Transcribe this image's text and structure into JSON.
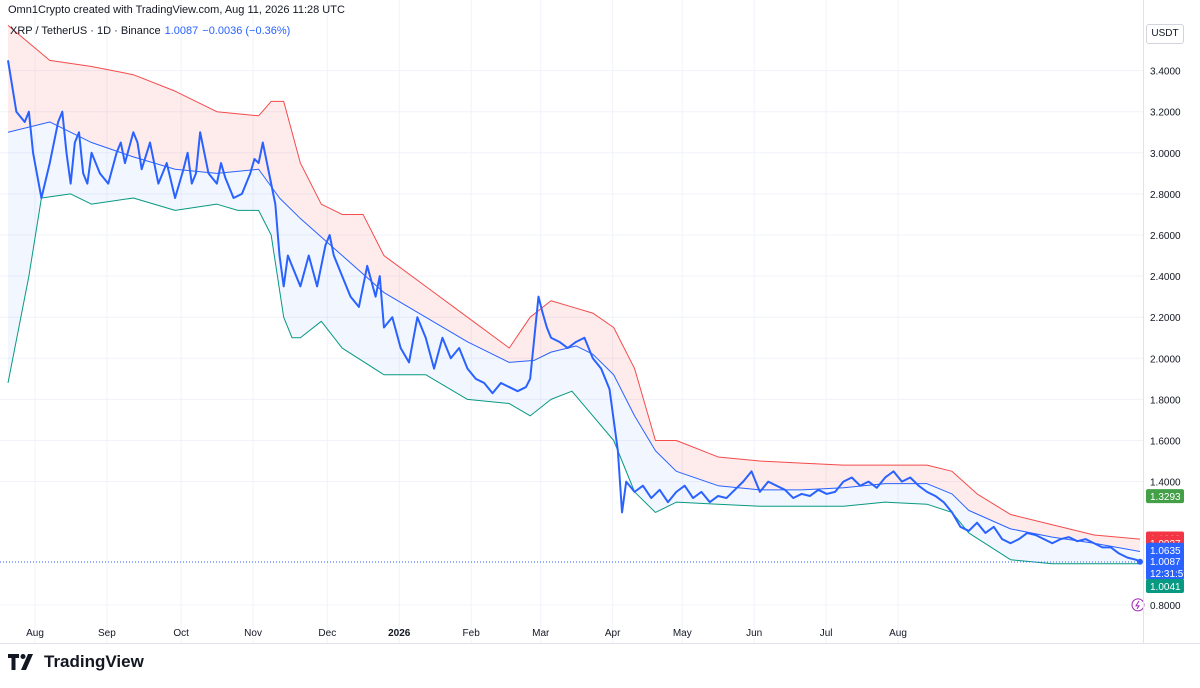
{
  "caption": "Omn1Crypto created with TradingView.com, Aug 11, 2026 11:28 UTC",
  "legend": {
    "symbol": "XRP / TetherUS · 1D · Binance",
    "value": "1.0087",
    "change": "−0.0036 (−0.36%)"
  },
  "currency": "USDT",
  "brand": {
    "name": "TradingView",
    "logo_icon": "tradingview-logo-icon"
  },
  "chart_data": {
    "type": "line",
    "x_labels": [
      "Aug",
      "Sep",
      "Oct",
      "Nov",
      "Dec",
      "2026",
      "Feb",
      "Mar",
      "Apr",
      "May",
      "Jun",
      "Jul",
      "Aug"
    ],
    "y_ticks": [
      "3.4000",
      "3.2000",
      "3.0000",
      "2.8000",
      "2.6000",
      "2.4000",
      "2.2000",
      "2.0000",
      "1.8000",
      "1.6000",
      "1.4000",
      "0.8000"
    ],
    "ylim": [
      0.75,
      3.66
    ],
    "grid": true,
    "series": [
      {
        "name": "XRP / TetherUS",
        "color": "#2962ff",
        "points": [
          [
            0,
            3.45
          ],
          [
            2,
            3.2
          ],
          [
            4,
            3.15
          ],
          [
            5,
            3.2
          ],
          [
            6,
            3.0
          ],
          [
            8,
            2.78
          ],
          [
            10,
            2.95
          ],
          [
            12,
            3.15
          ],
          [
            13,
            3.2
          ],
          [
            14,
            3.0
          ],
          [
            15,
            2.85
          ],
          [
            16,
            3.05
          ],
          [
            17,
            3.1
          ],
          [
            18,
            2.9
          ],
          [
            19,
            2.85
          ],
          [
            20,
            3.0
          ],
          [
            22,
            2.9
          ],
          [
            24,
            2.85
          ],
          [
            26,
            3.0
          ],
          [
            27,
            3.05
          ],
          [
            28,
            2.95
          ],
          [
            30,
            3.1
          ],
          [
            31,
            3.05
          ],
          [
            32,
            2.92
          ],
          [
            34,
            3.05
          ],
          [
            36,
            2.85
          ],
          [
            38,
            2.95
          ],
          [
            40,
            2.78
          ],
          [
            42,
            2.92
          ],
          [
            43,
            3.0
          ],
          [
            44,
            2.85
          ],
          [
            45,
            2.9
          ],
          [
            46,
            3.1
          ],
          [
            47,
            3.0
          ],
          [
            48,
            2.9
          ],
          [
            50,
            2.85
          ],
          [
            51,
            2.95
          ],
          [
            52,
            2.88
          ],
          [
            54,
            2.78
          ],
          [
            56,
            2.8
          ],
          [
            57,
            2.85
          ],
          [
            58,
            2.9
          ],
          [
            59,
            2.97
          ],
          [
            60,
            2.95
          ],
          [
            61,
            3.05
          ],
          [
            62,
            2.95
          ],
          [
            63,
            2.85
          ],
          [
            64,
            2.75
          ],
          [
            65,
            2.5
          ],
          [
            66,
            2.35
          ],
          [
            67,
            2.5
          ],
          [
            68,
            2.45
          ],
          [
            70,
            2.35
          ],
          [
            72,
            2.5
          ],
          [
            74,
            2.35
          ],
          [
            76,
            2.55
          ],
          [
            77,
            2.6
          ],
          [
            78,
            2.5
          ],
          [
            80,
            2.4
          ],
          [
            82,
            2.3
          ],
          [
            84,
            2.25
          ],
          [
            86,
            2.45
          ],
          [
            88,
            2.3
          ],
          [
            89,
            2.4
          ],
          [
            90,
            2.15
          ],
          [
            92,
            2.2
          ],
          [
            94,
            2.05
          ],
          [
            96,
            1.98
          ],
          [
            98,
            2.2
          ],
          [
            100,
            2.1
          ],
          [
            102,
            1.95
          ],
          [
            104,
            2.1
          ],
          [
            106,
            2.0
          ],
          [
            108,
            2.05
          ],
          [
            110,
            1.95
          ],
          [
            112,
            1.9
          ],
          [
            114,
            1.88
          ],
          [
            116,
            1.83
          ],
          [
            118,
            1.88
          ],
          [
            120,
            1.86
          ],
          [
            122,
            1.84
          ],
          [
            124,
            1.86
          ],
          [
            125,
            1.9
          ],
          [
            126,
            2.1
          ],
          [
            127,
            2.3
          ],
          [
            128,
            2.22
          ],
          [
            129,
            2.15
          ],
          [
            130,
            2.1
          ],
          [
            132,
            2.08
          ],
          [
            134,
            2.05
          ],
          [
            136,
            2.08
          ],
          [
            138,
            2.1
          ],
          [
            140,
            2.0
          ],
          [
            142,
            1.95
          ],
          [
            143,
            1.9
          ],
          [
            144,
            1.85
          ],
          [
            145,
            1.7
          ],
          [
            146,
            1.55
          ],
          [
            147,
            1.25
          ],
          [
            148,
            1.4
          ],
          [
            150,
            1.35
          ],
          [
            152,
            1.38
          ],
          [
            154,
            1.32
          ],
          [
            156,
            1.36
          ],
          [
            158,
            1.3
          ],
          [
            160,
            1.35
          ],
          [
            162,
            1.38
          ],
          [
            164,
            1.32
          ],
          [
            166,
            1.35
          ],
          [
            168,
            1.3
          ],
          [
            170,
            1.33
          ],
          [
            172,
            1.32
          ],
          [
            174,
            1.36
          ],
          [
            176,
            1.4
          ],
          [
            178,
            1.45
          ],
          [
            180,
            1.35
          ],
          [
            182,
            1.4
          ],
          [
            184,
            1.38
          ],
          [
            186,
            1.36
          ],
          [
            188,
            1.32
          ],
          [
            190,
            1.34
          ],
          [
            192,
            1.33
          ],
          [
            194,
            1.36
          ],
          [
            196,
            1.34
          ],
          [
            198,
            1.35
          ],
          [
            200,
            1.4
          ],
          [
            202,
            1.42
          ],
          [
            204,
            1.38
          ],
          [
            206,
            1.4
          ],
          [
            208,
            1.37
          ],
          [
            210,
            1.42
          ],
          [
            212,
            1.45
          ],
          [
            214,
            1.4
          ],
          [
            216,
            1.42
          ],
          [
            218,
            1.38
          ],
          [
            220,
            1.35
          ],
          [
            222,
            1.33
          ],
          [
            224,
            1.3
          ],
          [
            226,
            1.25
          ],
          [
            228,
            1.18
          ],
          [
            230,
            1.16
          ],
          [
            232,
            1.2
          ],
          [
            234,
            1.15
          ],
          [
            236,
            1.18
          ],
          [
            238,
            1.12
          ],
          [
            240,
            1.1
          ],
          [
            242,
            1.12
          ],
          [
            244,
            1.15
          ],
          [
            246,
            1.14
          ],
          [
            248,
            1.12
          ],
          [
            250,
            1.1
          ],
          [
            252,
            1.12
          ],
          [
            254,
            1.13
          ],
          [
            256,
            1.11
          ],
          [
            258,
            1.12
          ],
          [
            260,
            1.1
          ],
          [
            262,
            1.08
          ],
          [
            264,
            1.08
          ],
          [
            266,
            1.05
          ],
          [
            268,
            1.03
          ],
          [
            270,
            1.02
          ],
          [
            271,
            1.01
          ]
        ]
      },
      {
        "name": "",
        "color": "#2962ff",
        "style": "thin",
        "points": [
          [
            0,
            3.1
          ],
          [
            10,
            3.15
          ],
          [
            20,
            3.05
          ],
          [
            30,
            2.98
          ],
          [
            40,
            2.92
          ],
          [
            50,
            2.9
          ],
          [
            60,
            2.92
          ],
          [
            65,
            2.78
          ],
          [
            70,
            2.68
          ],
          [
            80,
            2.5
          ],
          [
            90,
            2.32
          ],
          [
            100,
            2.2
          ],
          [
            110,
            2.08
          ],
          [
            120,
            1.98
          ],
          [
            126,
            1.99
          ],
          [
            130,
            2.03
          ],
          [
            136,
            2.06
          ],
          [
            140,
            2.02
          ],
          [
            145,
            1.92
          ],
          [
            150,
            1.72
          ],
          [
            155,
            1.55
          ],
          [
            160,
            1.45
          ],
          [
            170,
            1.38
          ],
          [
            180,
            1.36
          ],
          [
            190,
            1.36
          ],
          [
            200,
            1.37
          ],
          [
            210,
            1.39
          ],
          [
            220,
            1.39
          ],
          [
            226,
            1.34
          ],
          [
            230,
            1.26
          ],
          [
            240,
            1.17
          ],
          [
            250,
            1.13
          ],
          [
            260,
            1.1
          ],
          [
            271,
            1.06
          ]
        ]
      },
      {
        "name": "",
        "color": "#f44b4b",
        "style": "thin",
        "points": [
          [
            0,
            3.62
          ],
          [
            10,
            3.45
          ],
          [
            20,
            3.42
          ],
          [
            30,
            3.38
          ],
          [
            40,
            3.3
          ],
          [
            50,
            3.2
          ],
          [
            60,
            3.18
          ],
          [
            63,
            3.25
          ],
          [
            66,
            3.25
          ],
          [
            70,
            2.95
          ],
          [
            75,
            2.75
          ],
          [
            80,
            2.7
          ],
          [
            85,
            2.7
          ],
          [
            90,
            2.5
          ],
          [
            100,
            2.35
          ],
          [
            110,
            2.2
          ],
          [
            120,
            2.05
          ],
          [
            125,
            2.2
          ],
          [
            130,
            2.28
          ],
          [
            135,
            2.25
          ],
          [
            140,
            2.22
          ],
          [
            145,
            2.15
          ],
          [
            150,
            1.95
          ],
          [
            155,
            1.6
          ],
          [
            160,
            1.6
          ],
          [
            170,
            1.52
          ],
          [
            180,
            1.5
          ],
          [
            190,
            1.49
          ],
          [
            200,
            1.48
          ],
          [
            210,
            1.48
          ],
          [
            220,
            1.48
          ],
          [
            226,
            1.45
          ],
          [
            232,
            1.34
          ],
          [
            240,
            1.24
          ],
          [
            250,
            1.19
          ],
          [
            260,
            1.14
          ],
          [
            271,
            1.12
          ]
        ]
      },
      {
        "name": "",
        "color": "#089981",
        "style": "thin",
        "points": [
          [
            0,
            1.88
          ],
          [
            5,
            2.4
          ],
          [
            8,
            2.78
          ],
          [
            15,
            2.8
          ],
          [
            20,
            2.75
          ],
          [
            30,
            2.78
          ],
          [
            40,
            2.72
          ],
          [
            50,
            2.75
          ],
          [
            55,
            2.72
          ],
          [
            60,
            2.72
          ],
          [
            63,
            2.6
          ],
          [
            66,
            2.2
          ],
          [
            68,
            2.1
          ],
          [
            70,
            2.1
          ],
          [
            75,
            2.18
          ],
          [
            80,
            2.05
          ],
          [
            90,
            1.92
          ],
          [
            100,
            1.92
          ],
          [
            110,
            1.8
          ],
          [
            120,
            1.78
          ],
          [
            125,
            1.72
          ],
          [
            130,
            1.8
          ],
          [
            135,
            1.84
          ],
          [
            140,
            1.72
          ],
          [
            145,
            1.6
          ],
          [
            150,
            1.35
          ],
          [
            155,
            1.25
          ],
          [
            160,
            1.3
          ],
          [
            170,
            1.29
          ],
          [
            180,
            1.28
          ],
          [
            190,
            1.28
          ],
          [
            200,
            1.28
          ],
          [
            210,
            1.3
          ],
          [
            220,
            1.29
          ],
          [
            226,
            1.25
          ],
          [
            230,
            1.15
          ],
          [
            240,
            1.02
          ],
          [
            250,
            1.0
          ],
          [
            260,
            1.0
          ],
          [
            271,
            1.0
          ]
        ]
      }
    ],
    "price_labels": [
      {
        "value": "1.3293",
        "color": "#43a047"
      },
      {
        "value": "1.1229",
        "color": "#f23645"
      },
      {
        "value": "1.0927",
        "color": "#f23645"
      },
      {
        "value": "1.0635",
        "color": "#2962ff"
      },
      {
        "value": "1.0087",
        "color": "#2962ff"
      },
      {
        "value": "12:31:59",
        "color": "#2962ff"
      },
      {
        "value": "1.0041",
        "color": "#089981"
      }
    ]
  }
}
